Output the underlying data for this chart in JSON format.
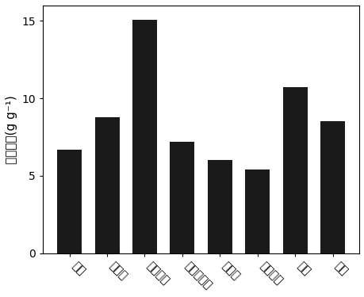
{
  "categories": [
    "甲苯",
    "二甲苯",
    "四氯化碳",
    "正硅酸乙酯",
    "正庚烷",
    "四氯吶啗",
    "苯胺",
    "硫磺"
  ],
  "values": [
    6.7,
    8.8,
    15.1,
    7.2,
    6.0,
    5.4,
    10.7,
    8.5
  ],
  "bar_color": "#1a1a1a",
  "ylabel": "吸附容量(g g⁻¹)",
  "ylim": [
    0,
    16
  ],
  "yticks": [
    0,
    5,
    10,
    15
  ],
  "background_color": "#ffffff",
  "bar_width": 0.65,
  "xlabel_rotation": -45,
  "xlabel_ha": "left",
  "tick_fontsize": 10,
  "ylabel_fontsize": 11
}
